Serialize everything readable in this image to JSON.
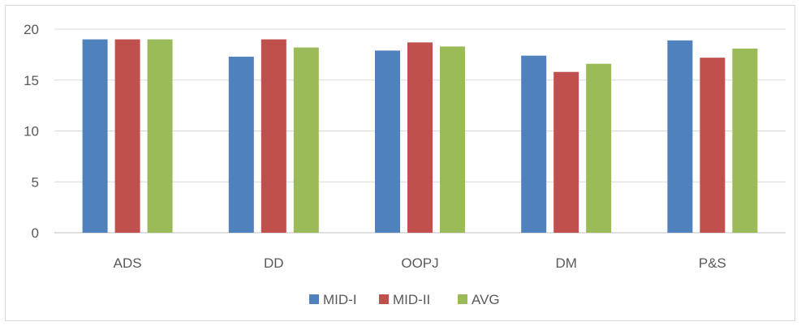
{
  "chart_data": {
    "type": "bar",
    "categories": [
      "ADS",
      "DD",
      "OOPJ",
      "DM",
      "P&S"
    ],
    "series": [
      {
        "name": "MID-I",
        "values": [
          19.0,
          17.3,
          17.9,
          17.4,
          18.9
        ],
        "color": "#4f81bd"
      },
      {
        "name": "MID-II",
        "values": [
          19.0,
          19.0,
          18.7,
          15.8,
          17.2
        ],
        "color": "#c0504d"
      },
      {
        "name": "AVG",
        "values": [
          19.0,
          18.2,
          18.3,
          16.6,
          18.1
        ],
        "color": "#9bbb59"
      }
    ],
    "ylim": [
      0,
      20
    ],
    "yticks": [
      0,
      5,
      10,
      15,
      20
    ],
    "title": "",
    "xlabel": "",
    "ylabel": "",
    "grid": true,
    "legend_position": "bottom",
    "gridline_color": "#d9d9d9",
    "axis_color": "#bfbfbf"
  }
}
